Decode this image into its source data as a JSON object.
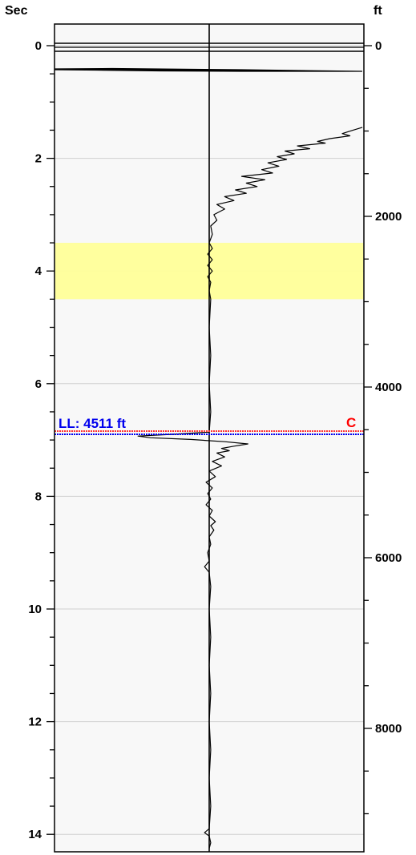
{
  "chart_data": {
    "type": "line",
    "left_axis": {
      "label": "Sec",
      "range": [
        -0.3,
        14.3
      ],
      "major_ticks": [
        0,
        2,
        4,
        6,
        8,
        10,
        12,
        14
      ],
      "minor_step": 0.5
    },
    "right_axis": {
      "label": "ft",
      "ticks": [
        0,
        2000,
        4000,
        6000,
        8000
      ]
    },
    "grid": true,
    "highlight_band": {
      "y_from": 3.5,
      "y_to": 4.5,
      "color": "#ffff99"
    },
    "marker_line": {
      "label": "LL: 4511 ft",
      "flag": "C",
      "y": 6.87,
      "colors": {
        "top": "#ff3333",
        "bottom": "#0000ee"
      }
    },
    "series": [
      {
        "color": "#000000",
        "points": [
          {
            "y": 1.45,
            "x": 0.99
          },
          {
            "y": 1.5,
            "x": 0.93
          },
          {
            "y": 1.56,
            "x": 0.86
          },
          {
            "y": 1.6,
            "x": 0.91
          },
          {
            "y": 1.65,
            "x": 0.78
          },
          {
            "y": 1.7,
            "x": 0.7
          },
          {
            "y": 1.73,
            "x": 0.75
          },
          {
            "y": 1.78,
            "x": 0.57
          },
          {
            "y": 1.83,
            "x": 0.65
          },
          {
            "y": 1.87,
            "x": 0.49
          },
          {
            "y": 1.92,
            "x": 0.55
          },
          {
            "y": 1.97,
            "x": 0.44
          },
          {
            "y": 2.02,
            "x": 0.5
          },
          {
            "y": 2.08,
            "x": 0.38
          },
          {
            "y": 2.14,
            "x": 0.45
          },
          {
            "y": 2.2,
            "x": 0.34
          },
          {
            "y": 2.26,
            "x": 0.41
          },
          {
            "y": 2.32,
            "x": 0.21
          },
          {
            "y": 2.38,
            "x": 0.36
          },
          {
            "y": 2.44,
            "x": 0.24
          },
          {
            "y": 2.5,
            "x": 0.31
          },
          {
            "y": 2.56,
            "x": 0.17
          },
          {
            "y": 2.62,
            "x": 0.24
          },
          {
            "y": 2.68,
            "x": 0.1
          },
          {
            "y": 2.75,
            "x": 0.16
          },
          {
            "y": 2.82,
            "x": 0.05
          },
          {
            "y": 2.9,
            "x": 0.1
          },
          {
            "y": 3.0,
            "x": 0.03
          },
          {
            "y": 3.1,
            "x": 0.05
          },
          {
            "y": 3.2,
            "x": 0.01
          },
          {
            "y": 3.35,
            "x": 0.02
          },
          {
            "y": 3.5,
            "x": 0.0
          },
          {
            "y": 3.6,
            "x": 0.02
          },
          {
            "y": 3.7,
            "x": -0.01
          },
          {
            "y": 3.8,
            "x": 0.02
          },
          {
            "y": 3.9,
            "x": -0.01
          },
          {
            "y": 4.0,
            "x": 0.02
          },
          {
            "y": 4.1,
            "x": -0.01
          },
          {
            "y": 4.2,
            "x": 0.01
          },
          {
            "y": 4.35,
            "x": 0.0
          },
          {
            "y": 4.5,
            "x": 0.01
          },
          {
            "y": 5.0,
            "x": 0.0
          },
          {
            "y": 5.5,
            "x": 0.01
          },
          {
            "y": 6.0,
            "x": 0.0
          },
          {
            "y": 6.5,
            "x": 0.01
          },
          {
            "y": 6.86,
            "x": 0.0
          },
          {
            "y": 6.9,
            "x": -0.25
          },
          {
            "y": 6.93,
            "x": -0.46
          },
          {
            "y": 6.96,
            "x": -0.38
          },
          {
            "y": 6.99,
            "x": -0.12
          },
          {
            "y": 7.03,
            "x": 0.1
          },
          {
            "y": 7.07,
            "x": 0.25
          },
          {
            "y": 7.11,
            "x": 0.16
          },
          {
            "y": 7.15,
            "x": 0.08
          },
          {
            "y": 7.19,
            "x": 0.13
          },
          {
            "y": 7.23,
            "x": 0.05
          },
          {
            "y": 7.3,
            "x": 0.1
          },
          {
            "y": 7.38,
            "x": 0.02
          },
          {
            "y": 7.46,
            "x": 0.08
          },
          {
            "y": 7.55,
            "x": 0.0
          },
          {
            "y": 7.65,
            "x": 0.04
          },
          {
            "y": 7.75,
            "x": -0.02
          },
          {
            "y": 7.85,
            "x": 0.02
          },
          {
            "y": 7.95,
            "x": -0.01
          },
          {
            "y": 8.05,
            "x": 0.01
          },
          {
            "y": 8.15,
            "x": -0.02
          },
          {
            "y": 8.25,
            "x": 0.02
          },
          {
            "y": 8.35,
            "x": 0.0
          },
          {
            "y": 8.45,
            "x": 0.04
          },
          {
            "y": 8.52,
            "x": 0.01
          },
          {
            "y": 8.6,
            "x": 0.03
          },
          {
            "y": 8.72,
            "x": 0.0
          },
          {
            "y": 8.85,
            "x": 0.01
          },
          {
            "y": 9.0,
            "x": -0.01
          },
          {
            "y": 9.15,
            "x": 0.0
          },
          {
            "y": 9.25,
            "x": -0.03
          },
          {
            "y": 9.35,
            "x": 0.0
          },
          {
            "y": 9.6,
            "x": 0.01
          },
          {
            "y": 10.0,
            "x": 0.0
          },
          {
            "y": 10.5,
            "x": 0.01
          },
          {
            "y": 11.0,
            "x": 0.0
          },
          {
            "y": 11.5,
            "x": 0.01
          },
          {
            "y": 12.0,
            "x": 0.0
          },
          {
            "y": 12.5,
            "x": 0.01
          },
          {
            "y": 13.0,
            "x": 0.0
          },
          {
            "y": 13.5,
            "x": 0.01
          },
          {
            "y": 13.9,
            "x": 0.0
          },
          {
            "y": 13.97,
            "x": -0.03
          },
          {
            "y": 14.03,
            "x": 0.0
          },
          {
            "y": 14.15,
            "x": 0.01
          },
          {
            "y": 14.25,
            "x": 0.0
          }
        ]
      }
    ]
  }
}
